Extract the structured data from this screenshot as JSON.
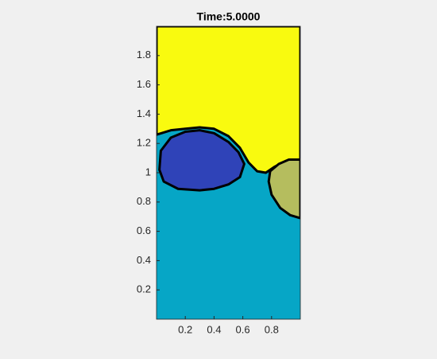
{
  "chart_data": {
    "type": "region",
    "title": "Time:5.0000",
    "xlim": [
      0,
      1
    ],
    "ylim": [
      0,
      2
    ],
    "xticks": [
      0.2,
      0.4,
      0.6,
      0.8
    ],
    "yticks": [
      0.2,
      0.4,
      0.6,
      0.8,
      1,
      1.2,
      1.4,
      1.6,
      1.8
    ],
    "background_color": "#06a6c6",
    "regions": [
      {
        "color": "#f9fa0f",
        "x": [
          0,
          0.1,
          0.2,
          0.3,
          0.4,
          0.5,
          0.58,
          0.64,
          0.7,
          0.76,
          0.82,
          0.9,
          1,
          1,
          0
        ],
        "y": [
          1.26,
          1.29,
          1.3,
          1.31,
          1.3,
          1.25,
          1.17,
          1.07,
          1.01,
          1.0,
          1.04,
          1.08,
          1.09,
          2,
          2
        ]
      },
      {
        "color": "#2f43b8",
        "x": [
          0.03,
          0.1,
          0.2,
          0.3,
          0.4,
          0.5,
          0.57,
          0.61,
          0.58,
          0.5,
          0.4,
          0.3,
          0.15,
          0.05,
          0.02
        ],
        "y": [
          1.15,
          1.24,
          1.28,
          1.29,
          1.27,
          1.21,
          1.14,
          1.06,
          0.97,
          0.92,
          0.89,
          0.88,
          0.89,
          0.94,
          1.02
        ]
      },
      {
        "color": "#b5bd5e",
        "x": [
          1,
          0.92,
          0.85,
          0.79,
          0.78,
          0.8,
          0.86,
          0.93,
          1
        ],
        "y": [
          1.09,
          1.09,
          1.06,
          1.01,
          0.94,
          0.85,
          0.76,
          0.71,
          0.69
        ]
      }
    ]
  }
}
